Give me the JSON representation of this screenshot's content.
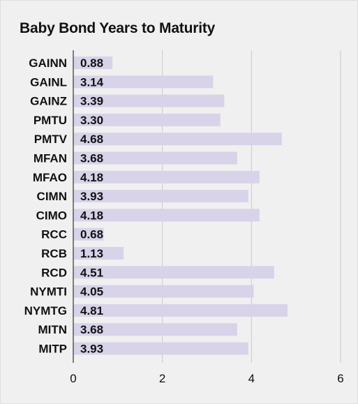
{
  "chart_data": {
    "type": "bar",
    "orientation": "horizontal",
    "title": "Baby Bond Years to Maturity",
    "xlabel": "",
    "ylabel": "",
    "categories": [
      "GAINN",
      "GAINL",
      "GAINZ",
      "PMTU",
      "PMTV",
      "MFAN",
      "MFAO",
      "CIMN",
      "CIMO",
      "RCC",
      "RCB",
      "RCD",
      "NYMTI",
      "NYMTG",
      "MITN",
      "MITP"
    ],
    "values": [
      0.88,
      3.14,
      3.39,
      3.3,
      4.68,
      3.68,
      4.18,
      3.93,
      4.18,
      0.68,
      1.13,
      4.51,
      4.05,
      4.81,
      3.68,
      3.93
    ],
    "value_labels": [
      "0.88",
      "3.14",
      "3.39",
      "3.30",
      "4.68",
      "3.68",
      "4.18",
      "3.93",
      "4.18",
      "0.68",
      "1.13",
      "4.51",
      "4.05",
      "4.81",
      "3.68",
      "3.93"
    ],
    "xlim": [
      0,
      6
    ],
    "xticks": [
      "0",
      "2",
      "4",
      "6"
    ],
    "grid": true,
    "bar_color": "#d8d3e9",
    "grid_color": "#c9c9c9"
  }
}
